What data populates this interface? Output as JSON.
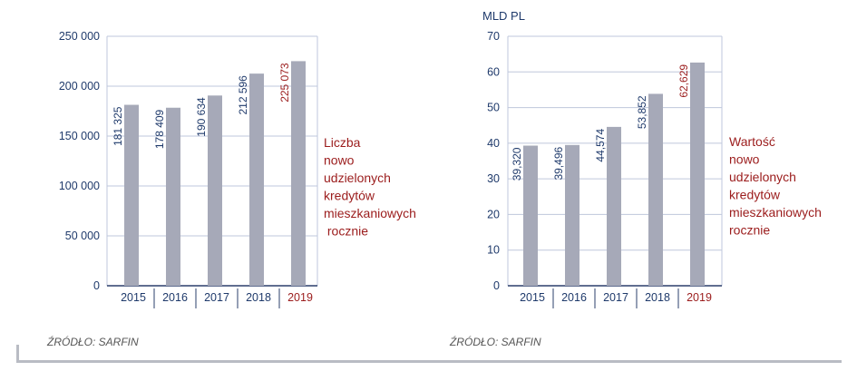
{
  "colors": {
    "bar": "#a6a9b8",
    "axis_text": "#1f3a6b",
    "grid": "#bfc7dc",
    "axis": "#2b3f6b",
    "highlight": "#9b1c1c",
    "source_text": "#555555"
  },
  "chart_data": [
    {
      "type": "bar",
      "categories": [
        "2015",
        "2016",
        "2017",
        "2018",
        "2019"
      ],
      "values": [
        181325,
        178409,
        190634,
        212596,
        225073
      ],
      "value_labels": [
        "181 325",
        "178 409",
        "190 634",
        "212 596",
        "225 073"
      ],
      "highlight_index": 4,
      "ylim": [
        0,
        250000
      ],
      "yticks": [
        0,
        50000,
        100000,
        150000,
        200000,
        250000
      ],
      "ytick_labels": [
        "0",
        "50 000",
        "100 000",
        "150 000",
        "200 000",
        "250 000"
      ],
      "ylabel": "",
      "grid": true,
      "annotation": [
        "Liczba",
        "nowo",
        "udzielonych",
        "kredytów",
        "mieszkaniowych",
        " rocznie"
      ],
      "source": "ŹRÓDŁO: SARFIN"
    },
    {
      "type": "bar",
      "categories": [
        "2015",
        "2016",
        "2017",
        "2018",
        "2019"
      ],
      "values": [
        39.32,
        39.496,
        44.574,
        53.852,
        62.629
      ],
      "value_labels": [
        "39,320",
        "39,496",
        "44,574",
        "53,852",
        "62,629"
      ],
      "highlight_index": 4,
      "ylim": [
        0,
        70
      ],
      "yticks": [
        0,
        10,
        20,
        30,
        40,
        50,
        60,
        70
      ],
      "ytick_labels": [
        "0",
        "10",
        "20",
        "30",
        "40",
        "50",
        "60",
        "70"
      ],
      "ylabel": "MLD PL",
      "grid": true,
      "annotation": [
        "Wartość",
        "nowo",
        "udzielonych",
        "kredytów",
        "mieszkaniowych",
        "rocznie"
      ],
      "source": "ŹRÓDŁO: SARFIN"
    }
  ]
}
